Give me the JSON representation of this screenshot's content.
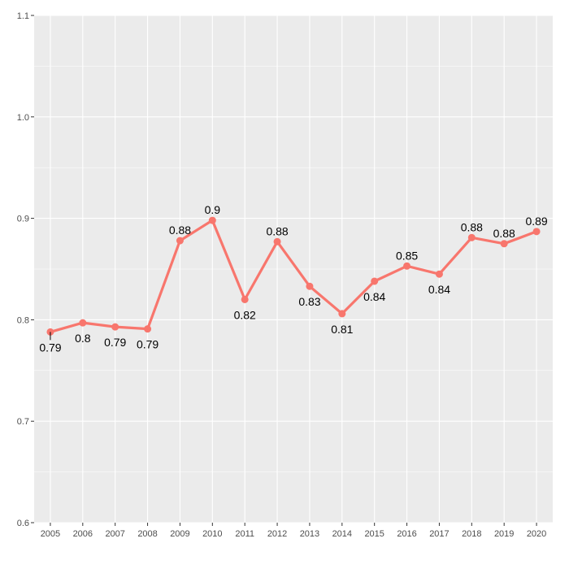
{
  "chart_data": {
    "type": "line",
    "title": "",
    "xlabel": "",
    "ylabel": "",
    "x": [
      "2005",
      "2006",
      "2007",
      "2008",
      "2009",
      "2010",
      "2011",
      "2012",
      "2013",
      "2014",
      "2015",
      "2016",
      "2017",
      "2018",
      "2019",
      "2020"
    ],
    "values": [
      0.788,
      0.797,
      0.793,
      0.791,
      0.878,
      0.898,
      0.82,
      0.877,
      0.833,
      0.806,
      0.838,
      0.853,
      0.845,
      0.881,
      0.875,
      0.887
    ],
    "labels": [
      "0.79",
      "0.8",
      "0.79",
      "0.79",
      "0.88",
      "0.9",
      "0.82",
      "0.88",
      "0.83",
      "0.81",
      "0.84",
      "0.85",
      "0.84",
      "0.88",
      "0.88",
      "0.89"
    ],
    "label_positions": [
      "below",
      "below",
      "below",
      "below",
      "above",
      "above",
      "below",
      "above",
      "below",
      "below",
      "below",
      "above",
      "below",
      "above",
      "above",
      "above"
    ],
    "ylim": [
      0.6,
      1.1
    ],
    "yticks": [
      0.6,
      0.7,
      0.8,
      0.9,
      1.0,
      1.1
    ],
    "ytick_labels": [
      "0.6",
      "0.7",
      "0.8",
      "0.9",
      "1.0",
      "1.1"
    ],
    "grid": true,
    "legend": "none",
    "colors": {
      "panel": "#ebebeb",
      "grid": "#ffffff",
      "line": "#f8766d",
      "text": "#4d4d4d"
    }
  }
}
